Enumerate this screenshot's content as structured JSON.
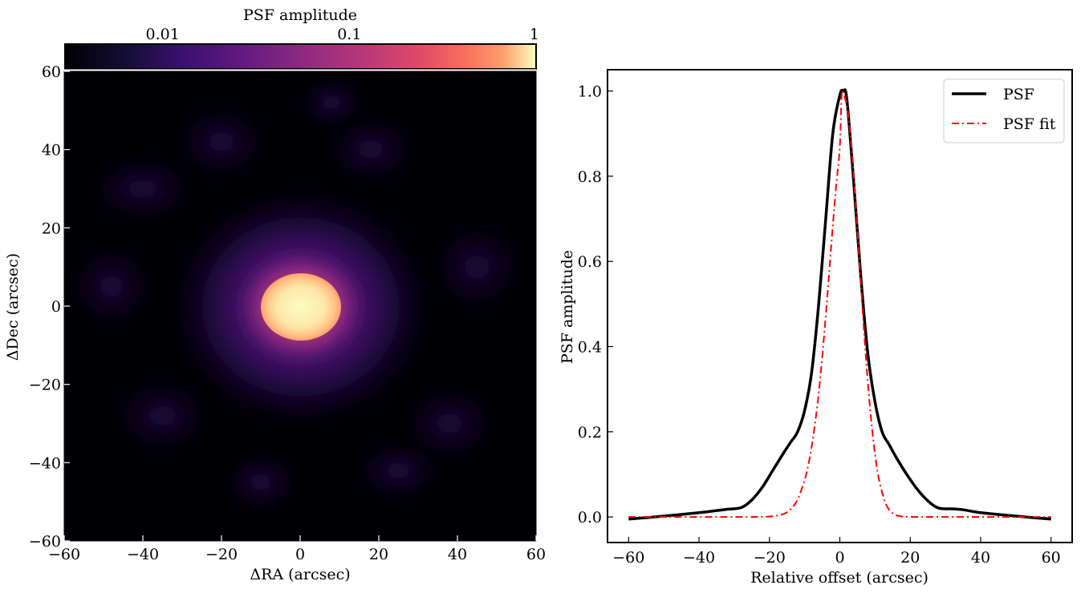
{
  "chart_data": [
    {
      "type": "heatmap",
      "title": "",
      "xlabel": "ΔRA (arcsec)",
      "ylabel": "ΔDec (arcsec)",
      "xlim": [
        -60,
        60
      ],
      "ylim": [
        -60,
        60
      ],
      "xticks": [
        -60,
        -40,
        -20,
        0,
        20,
        40,
        60
      ],
      "yticks": [
        -60,
        -40,
        -20,
        0,
        20,
        40,
        60
      ],
      "xtick_labels": [
        "−60",
        "−40",
        "−20",
        "0",
        "20",
        "40",
        "60"
      ],
      "ytick_labels": [
        "−60",
        "−40",
        "−20",
        "0",
        "20",
        "40",
        "60"
      ],
      "colorbar": {
        "label": "PSF amplitude",
        "scale": "log",
        "range": [
          0.003,
          1
        ],
        "ticks": [
          0.01,
          0.1,
          1
        ],
        "tick_labels": [
          "0.01",
          "0.1",
          "1"
        ],
        "colormap": "magma",
        "position": "top"
      },
      "core": {
        "center": [
          0,
          0
        ],
        "fwhm_x": 20,
        "fwhm_y": 16,
        "peak": 1
      }
    },
    {
      "type": "line",
      "xlabel": "Relative offset (arcsec)",
      "ylabel": "PSF amplitude",
      "xlim": [
        -66,
        66
      ],
      "ylim": [
        -0.06,
        1.05
      ],
      "xticks": [
        -60,
        -40,
        -20,
        0,
        20,
        40,
        60
      ],
      "yticks": [
        0.0,
        0.2,
        0.4,
        0.6,
        0.8,
        1.0
      ],
      "xtick_labels": [
        "−60",
        "−40",
        "−20",
        "0",
        "20",
        "40",
        "60"
      ],
      "ytick_labels": [
        "0.0",
        "0.2",
        "0.4",
        "0.6",
        "0.8",
        "1.0"
      ],
      "legend_position": "top-right",
      "grid": false,
      "series": [
        {
          "name": "PSF",
          "color": "#000000",
          "style": "solid",
          "x": [
            -60,
            -50,
            -40,
            -35,
            -32,
            -28,
            -25,
            -22,
            -19,
            -16,
            -14,
            -12,
            -10,
            -8,
            -6,
            -4,
            -2,
            0,
            1,
            2,
            4,
            6,
            8,
            10,
            12,
            14,
            16,
            19,
            22,
            25,
            28,
            32,
            35,
            40,
            50,
            60
          ],
          "y": [
            -0.005,
            0.002,
            0.01,
            0.015,
            0.018,
            0.022,
            0.04,
            0.07,
            0.11,
            0.15,
            0.175,
            0.2,
            0.25,
            0.34,
            0.5,
            0.7,
            0.9,
            0.99,
            1.0,
            0.98,
            0.78,
            0.56,
            0.38,
            0.27,
            0.2,
            0.17,
            0.14,
            0.1,
            0.065,
            0.038,
            0.021,
            0.019,
            0.017,
            0.01,
            0.002,
            -0.005
          ]
        },
        {
          "name": "PSF fit",
          "color": "#ff0000",
          "style": "dashdot",
          "center": 0.5,
          "fwhm": 9.0,
          "x": [
            -60,
            -30,
            -20,
            -16,
            -14,
            -12,
            -10,
            -9,
            -8,
            -7,
            -6,
            -5,
            -4,
            -3,
            -2,
            -1,
            0,
            0.5,
            1,
            2,
            3,
            4,
            5,
            6,
            7,
            8,
            9,
            10,
            11,
            13,
            15,
            17,
            21,
            30,
            60
          ],
          "y": [
            0,
            0,
            0.001,
            0.007,
            0.018,
            0.041,
            0.087,
            0.12,
            0.165,
            0.222,
            0.291,
            0.376,
            0.472,
            0.577,
            0.683,
            0.781,
            0.868,
            0.99,
            0.993,
            0.965,
            0.898,
            0.797,
            0.675,
            0.547,
            0.422,
            0.312,
            0.22,
            0.147,
            0.093,
            0.032,
            0.009,
            0.002,
            0.0,
            0,
            0
          ]
        }
      ]
    }
  ]
}
